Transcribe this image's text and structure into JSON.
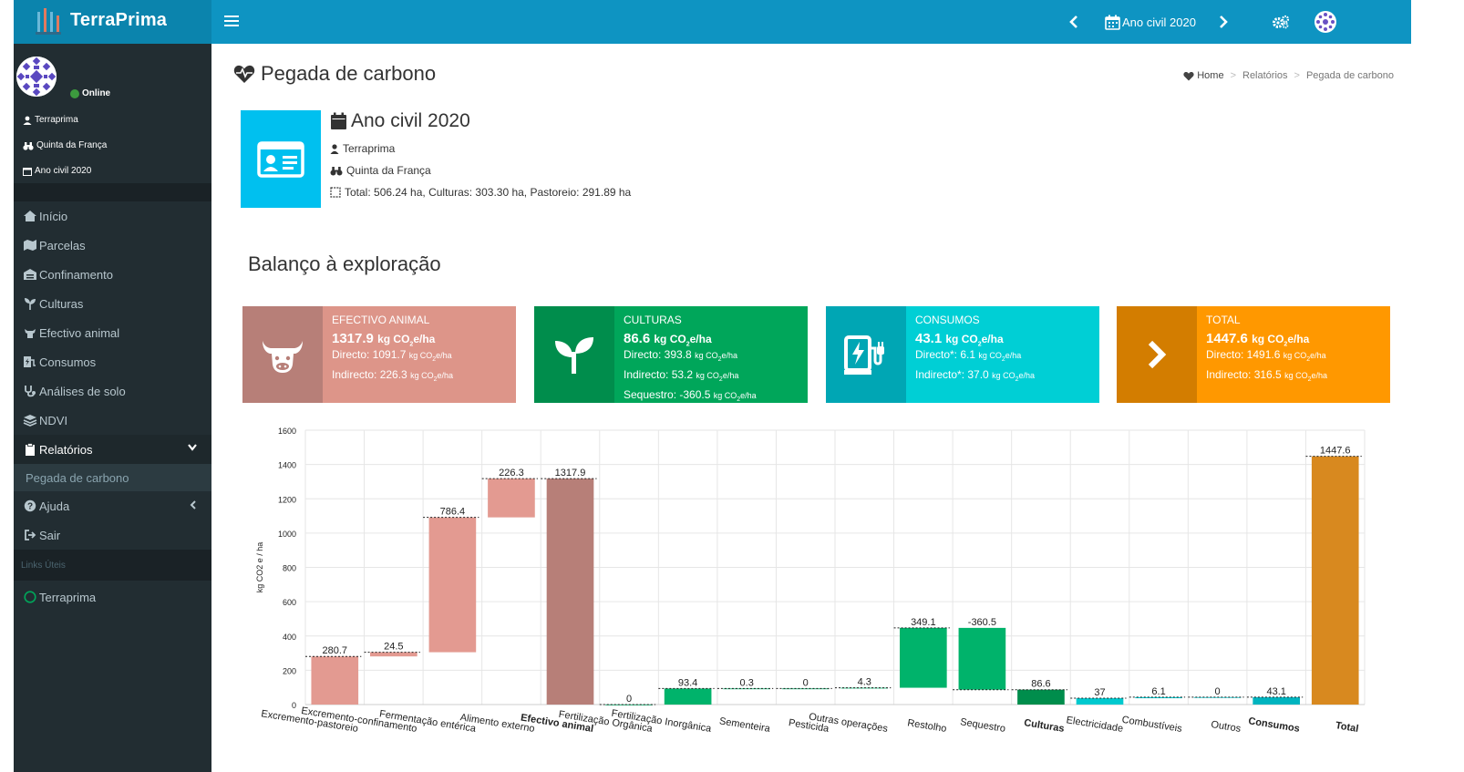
{
  "app": {
    "name": "TerraPrima"
  },
  "topbar": {
    "year_label": "Ano civil 2020"
  },
  "sidebar": {
    "status": "Online",
    "user_info": [
      "Terraprima",
      "Quinta da França",
      "Ano civil 2020"
    ],
    "menu": [
      {
        "label": "Início",
        "icon": "home-icon"
      },
      {
        "label": "Parcelas",
        "icon": "map-icon"
      },
      {
        "label": "Confinamento",
        "icon": "warehouse-icon"
      },
      {
        "label": "Culturas",
        "icon": "seedling-icon"
      },
      {
        "label": "Efectivo animal",
        "icon": "cow-icon"
      },
      {
        "label": "Consumos",
        "icon": "charging-station-icon"
      },
      {
        "label": "Análises de solo",
        "icon": "stethoscope-icon"
      },
      {
        "label": "NDVI",
        "icon": "layers-icon"
      },
      {
        "label": "Relatórios",
        "icon": "clipboard-icon"
      }
    ],
    "submenu_active": "Pegada de carbono",
    "menu2": [
      {
        "label": "Ajuda",
        "icon": "question-icon"
      },
      {
        "label": "Sair",
        "icon": "sign-out-icon"
      }
    ],
    "links_header": "Links Úteis",
    "links": [
      {
        "label": "Terraprima",
        "icon": "circle-icon"
      }
    ]
  },
  "page": {
    "title": "Pegada de carbono",
    "breadcrumb": [
      "Home",
      "Relatórios",
      "Pegada de carbono"
    ]
  },
  "info": {
    "title": "Ano civil 2020",
    "user": "Terraprima",
    "farm": "Quinta da França",
    "area": "Total: 506.24 ha, Culturas: 303.30 ha, Pastoreio: 291.89 ha"
  },
  "section_title": "Balanço à exploração",
  "kpis": [
    {
      "title": "EFECTIVO ANIMAL",
      "value": "1317.9",
      "unit": "kg CO",
      "unit_sub": "2",
      "unit_end": "e/ha",
      "lines": [
        {
          "label": "Directo: 1091.7"
        },
        {
          "label": "Indirecto: 226.3"
        }
      ],
      "color": "#dd9589",
      "icon_color": "#b77f78"
    },
    {
      "title": "CULTURAS",
      "value": "86.6",
      "unit": "kg CO",
      "unit_sub": "2",
      "unit_end": "e/ha",
      "lines": [
        {
          "label": "Directo: 393.8"
        },
        {
          "label": "Indirecto: 53.2"
        },
        {
          "label": "Sequestro: -360.5"
        }
      ],
      "color": "#00a65a",
      "icon_color": "#008d4c"
    },
    {
      "title": "CONSUMOS",
      "value": "43.1",
      "unit": "kg CO",
      "unit_sub": "2",
      "unit_end": "e/ha",
      "lines": [
        {
          "label": "Directo*: 6.1"
        },
        {
          "label": "Indirecto*: 37.0"
        }
      ],
      "color": "#00cfd5",
      "icon_color": "#00a6b4"
    },
    {
      "title": "TOTAL",
      "value": "1447.6",
      "unit": "kg CO",
      "unit_sub": "2",
      "unit_end": "e/ha",
      "lines": [
        {
          "label": "Directo: 1491.6"
        },
        {
          "label": "Indirecto: 316.5"
        }
      ],
      "color": "#ff9800",
      "icon_color": "#d37d00"
    }
  ],
  "kpi_unit_small": "kg CO",
  "kpi_unit_small_sub": "2",
  "kpi_unit_small_end": "e/ha",
  "chart_data": {
    "type": "bar",
    "subtype": "waterfall",
    "ylabel": "kg CO2 e / ha",
    "ylim": [
      0,
      1600
    ],
    "yticks": [
      0,
      200,
      400,
      600,
      800,
      1000,
      1200,
      1400,
      1600
    ],
    "categories": [
      "Excremento-pastoreio",
      "Excremento-confinamento",
      "Fermentação entérica",
      "Alimento externo",
      "Efectivo animal",
      "Fertilização Orgânica",
      "Fertilização Inorgânica",
      "Sementeira",
      "Pesticida",
      "Outras operações",
      "Restolho",
      "Sequestro",
      "Culturas",
      "Electricidade",
      "Combustíveis",
      "Outros",
      "Consumos",
      "Total"
    ],
    "bold": [
      false,
      false,
      false,
      false,
      true,
      false,
      false,
      false,
      false,
      false,
      false,
      false,
      true,
      false,
      false,
      false,
      true,
      true
    ],
    "bars": [
      {
        "label": "280.7",
        "bottom": 0,
        "top": 280.7,
        "color": "#e39a91"
      },
      {
        "label": "24.5",
        "bottom": 280.7,
        "top": 305.2,
        "color": "#e39a91"
      },
      {
        "label": "786.4",
        "bottom": 305.2,
        "top": 1091.6,
        "color": "#e39a91"
      },
      {
        "label": "226.3",
        "bottom": 1091.6,
        "top": 1317.9,
        "color": "#e39a91"
      },
      {
        "label": "1317.9",
        "bottom": 0,
        "top": 1317.9,
        "color": "#b77f78"
      },
      {
        "label": "0",
        "bottom": 0,
        "top": 0,
        "color": "#00b36b"
      },
      {
        "label": "93.4",
        "bottom": 0,
        "top": 93.4,
        "color": "#00b36b"
      },
      {
        "label": "0.3",
        "bottom": 93.4,
        "top": 93.7,
        "color": "#00b36b"
      },
      {
        "label": "0",
        "bottom": 93.7,
        "top": 93.7,
        "color": "#00b36b"
      },
      {
        "label": "4.3",
        "bottom": 93.7,
        "top": 98.0,
        "color": "#00b36b"
      },
      {
        "label": "349.1",
        "bottom": 98.0,
        "top": 447.1,
        "color": "#00b36b"
      },
      {
        "label": "-360.5",
        "bottom": 86.6,
        "top": 447.1,
        "color": "#00b36b"
      },
      {
        "label": "86.6",
        "bottom": 0,
        "top": 86.6,
        "color": "#008d4c"
      },
      {
        "label": "37",
        "bottom": 0,
        "top": 37,
        "color": "#00c9ce"
      },
      {
        "label": "6.1",
        "bottom": 37,
        "top": 43.1,
        "color": "#00c9ce"
      },
      {
        "label": "0",
        "bottom": 43.1,
        "top": 43.1,
        "color": "#00c9ce"
      },
      {
        "label": "43.1",
        "bottom": 0,
        "top": 43.1,
        "color": "#00b4bf"
      },
      {
        "label": "1447.6",
        "bottom": 0,
        "top": 1447.6,
        "color": "#d8891f"
      }
    ]
  }
}
